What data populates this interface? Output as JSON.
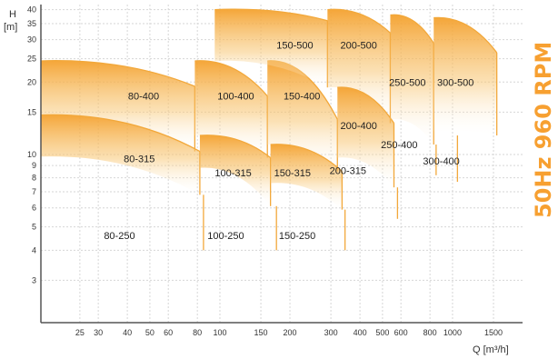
{
  "chart_data": {
    "type": "area",
    "title": "50Hz 960 RPM",
    "xlabel": "Q [m³/h]",
    "ylabel_top": "H",
    "ylabel_unit": "[m]",
    "x_scale": "log",
    "y_scale": "log",
    "xlim": [
      17,
      2000
    ],
    "ylim": [
      2.0,
      42
    ],
    "grid": true,
    "x_ticks": [
      25,
      30,
      40,
      50,
      60,
      80,
      100,
      150,
      200,
      300,
      400,
      500,
      600,
      800,
      1000,
      1500
    ],
    "y_ticks": [
      3,
      4,
      5,
      6,
      7,
      8,
      9,
      10,
      15,
      20,
      25,
      30,
      35,
      40
    ],
    "colors": {
      "curve": "#f2a83b",
      "fill_dark": "#f4a12e",
      "title": "#f7a031",
      "grid": "#d6d6d6"
    },
    "zones": [
      {
        "label": "80-400",
        "q_left": 17,
        "q_right": 78,
        "h_top_left": 24.5,
        "h_top_right": 19.2,
        "h_bottom_left": 14.6,
        "h_bottom_right": 10.3,
        "label_q": 47,
        "label_h": 17.5
      },
      {
        "label": "80-315",
        "q_left": 17,
        "q_right": 82,
        "h_top_left": 14.6,
        "h_top_right": 10.3,
        "h_bottom_left": 9.8,
        "h_bottom_right": 6.8,
        "label_q": 45,
        "label_h": 9.6
      },
      {
        "label": "80-250",
        "q_left": 17,
        "q_right": 85,
        "h_top_left": 9.8,
        "h_top_right": 6.8,
        "h_bottom_left": 9.8,
        "h_bottom_right": 4.0,
        "label_q": 37,
        "label_h": 4.6,
        "no_fill": true
      },
      {
        "label": "100-400",
        "q_left": 78,
        "q_right": 160,
        "h_top_left": 24.5,
        "h_top_right": 17.5,
        "h_bottom_left": 12.0,
        "h_bottom_right": 9.7,
        "label_q": 117,
        "label_h": 17.5
      },
      {
        "label": "100-315",
        "q_left": 82,
        "q_right": 165,
        "h_top_left": 12.0,
        "h_top_right": 9.7,
        "h_bottom_left": 8.8,
        "h_bottom_right": 6.1,
        "label_q": 114,
        "label_h": 8.4
      },
      {
        "label": "100-250",
        "q_left": 85,
        "q_right": 175,
        "h_top_left": 8.8,
        "h_top_right": 6.1,
        "h_bottom_left": 8.8,
        "h_bottom_right": 4.0,
        "label_q": 106,
        "label_h": 4.6,
        "no_fill": true
      },
      {
        "label": "150-400",
        "q_left": 160,
        "q_right": 320,
        "h_top_left": 24.5,
        "h_top_right": 14.0,
        "h_bottom_left": 11.0,
        "h_bottom_right": 8.5,
        "label_q": 225,
        "label_h": 17.5
      },
      {
        "label": "150-315",
        "q_left": 165,
        "q_right": 335,
        "h_top_left": 11.0,
        "h_top_right": 8.5,
        "h_bottom_left": 7.6,
        "h_bottom_right": 5.9,
        "label_q": 205,
        "label_h": 8.4
      },
      {
        "label": "150-250",
        "q_left": 175,
        "q_right": 345,
        "h_top_left": 7.6,
        "h_top_right": 5.9,
        "h_bottom_left": 7.6,
        "h_bottom_right": 4.0,
        "label_q": 215,
        "label_h": 4.6,
        "no_fill": true
      },
      {
        "label": "150-500",
        "q_left": 95,
        "q_right": 290,
        "h_top_left": 40,
        "h_top_right": 36,
        "h_bottom_left": 24.5,
        "h_bottom_right": 19.0,
        "label_q": 210,
        "label_h": 28.5
      },
      {
        "label": "200-500",
        "q_left": 290,
        "q_right": 540,
        "h_top_left": 40,
        "h_top_right": 32,
        "h_bottom_left": 19.0,
        "h_bottom_right": 13.5,
        "label_q": 395,
        "label_h": 28.5
      },
      {
        "label": "200-400",
        "q_left": 320,
        "q_right": 560,
        "h_top_left": 19.0,
        "h_top_right": 13.5,
        "h_bottom_left": 9.7,
        "h_bottom_right": 7.3,
        "label_q": 395,
        "label_h": 13.2
      },
      {
        "label": "200-315",
        "q_left": 335,
        "q_right": 580,
        "h_top_left": 9.7,
        "h_top_right": 7.3,
        "h_bottom_left": 9.7,
        "h_bottom_right": 5.4,
        "label_q": 355,
        "label_h": 8.6,
        "no_fill": true
      },
      {
        "label": "250-500",
        "q_left": 540,
        "q_right": 830,
        "h_top_left": 38,
        "h_top_right": 29,
        "h_bottom_left": 14.0,
        "h_bottom_right": 11.0,
        "label_q": 640,
        "label_h": 20
      },
      {
        "label": "250-400",
        "q_left": 560,
        "q_right": 850,
        "h_top_left": 14.0,
        "h_top_right": 11.0,
        "h_bottom_left": 14.0,
        "h_bottom_right": 8.2,
        "label_q": 590,
        "label_h": 11.0,
        "no_fill": true
      },
      {
        "label": "300-500",
        "q_left": 830,
        "q_right": 1550,
        "h_top_left": 37,
        "h_top_right": 26.5,
        "h_bottom_left": 12.5,
        "h_bottom_right": 12.0,
        "label_q": 1030,
        "label_h": 20
      },
      {
        "label": "300-400",
        "q_left": 850,
        "q_right": 1050,
        "h_top_left": 12.5,
        "h_top_right": 12.0,
        "h_bottom_left": 12.5,
        "h_bottom_right": 7.7,
        "label_q": 895,
        "label_h": 9.4,
        "no_fill": true
      }
    ]
  }
}
